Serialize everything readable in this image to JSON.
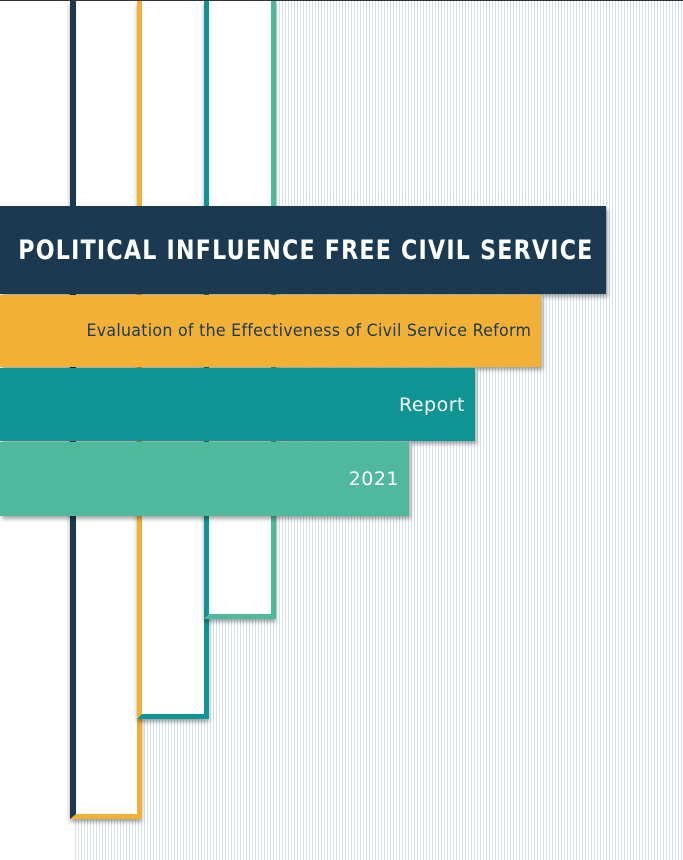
{
  "cover": {
    "title": "POLITICAL INFLUENCE FREE CIVIL SERVICE",
    "subtitle": "Evaluation of the Effectiveness of Civil Service Reform",
    "doc_type": "Report",
    "year": "2021"
  },
  "colors": {
    "navy": "#1b3a52",
    "yellow": "#f2b134",
    "teal": "#0f9494",
    "mint": "#4fb89d"
  }
}
